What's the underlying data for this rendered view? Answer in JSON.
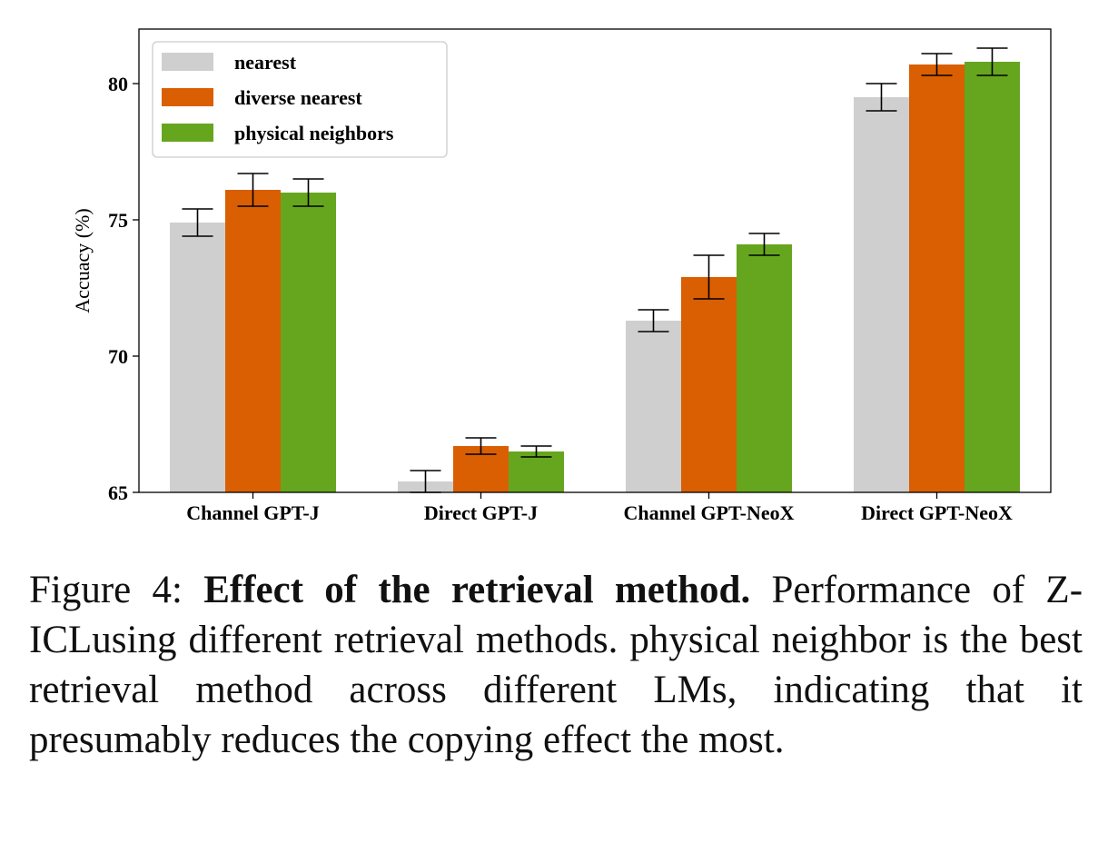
{
  "chart_data": {
    "type": "bar",
    "categories": [
      "Channel GPT-J",
      "Direct GPT-J",
      "Channel GPT-NeoX",
      "Direct GPT-NeoX"
    ],
    "series": [
      {
        "name": "nearest",
        "color": "#d0cfd0",
        "values": [
          74.9,
          65.4,
          71.3,
          79.5
        ],
        "errors": [
          0.5,
          0.4,
          0.4,
          0.5
        ]
      },
      {
        "name": "diverse nearest",
        "color": "#d95f02",
        "values": [
          76.1,
          66.7,
          72.9,
          80.7
        ],
        "errors": [
          0.6,
          0.3,
          0.8,
          0.4
        ]
      },
      {
        "name": "physical neighbors",
        "color": "#66a61e",
        "values": [
          76.0,
          66.5,
          74.1,
          80.8
        ],
        "errors": [
          0.5,
          0.2,
          0.4,
          0.5
        ]
      }
    ],
    "ylabel": "Accuacy (%)",
    "xlabel": "",
    "ylim": [
      65,
      82
    ],
    "yticks": [
      "65",
      "70",
      "75",
      "80"
    ],
    "legend_position": "top-left",
    "grid": false
  },
  "caption": {
    "prefix": "Figure 4: ",
    "bold": "Effect of the retrieval method.",
    "text1": " Performance of ",
    "method": "Z-ICL",
    "text2": "using different retrieval methods.  physical neighbor is the best retrieval method across different LMs, indicating that it presumably reduces the copying effect the most."
  }
}
